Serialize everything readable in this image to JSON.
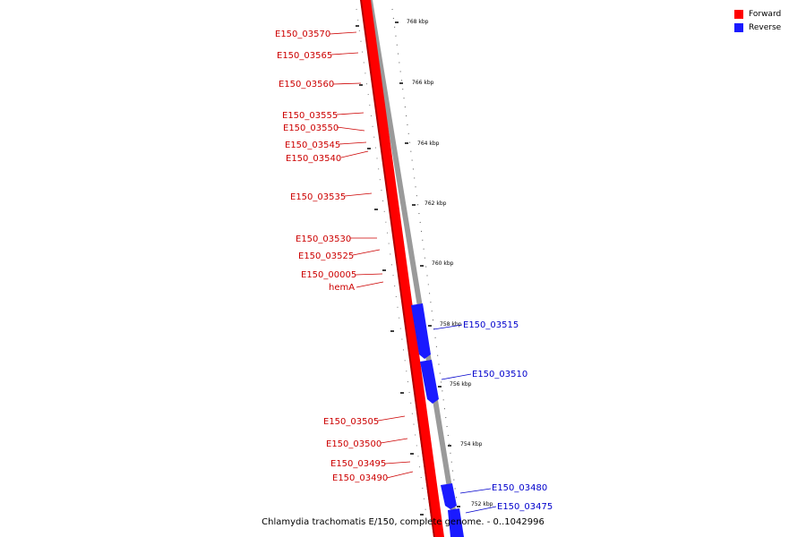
{
  "legend": {
    "forward_label": "Forward",
    "reverse_label": "Reverse",
    "forward_color": "#ff0000",
    "reverse_color": "#1a1aff"
  },
  "caption": "Chlamydia trachomatis E/150, complete genome. - 0..1042996",
  "ticks": [
    "768 kbp",
    "766 kbp",
    "764 kbp",
    "762 kbp",
    "760 kbp",
    "758 kbp",
    "756 kbp",
    "754 kbp",
    "752 kbp"
  ],
  "forward_genes": [
    "E150_03570",
    "E150_03565",
    "E150_03560",
    "E150_03555",
    "E150_03550",
    "E150_03545",
    "E150_03540",
    "E150_03535",
    "E150_03530",
    "E150_03525",
    "E150_00005",
    "hemA",
    "E150_03505",
    "E150_03500",
    "E150_03495",
    "E150_03490"
  ],
  "reverse_genes": [
    "E150_03515",
    "E150_03510",
    "E150_03480",
    "E150_03475"
  ]
}
